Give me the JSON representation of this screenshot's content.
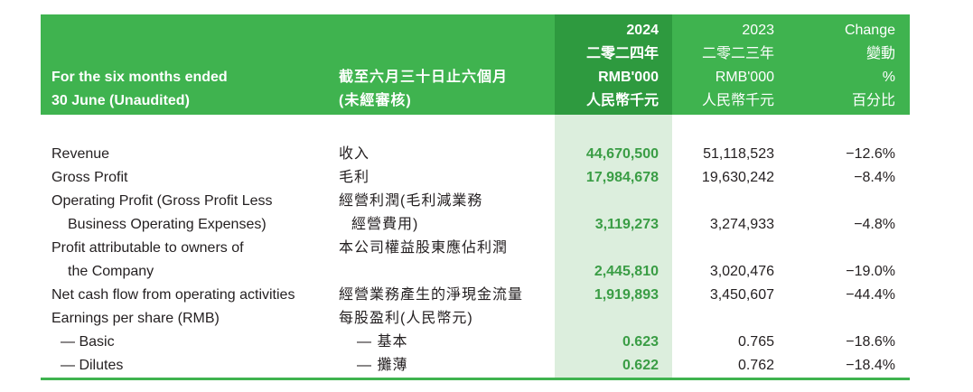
{
  "header": {
    "period_en_1": "For the six months ended",
    "period_en_2": "30 June (Unaudited)",
    "period_zh_1": "截至六月三十日止六個月",
    "period_zh_2": "(未經審核)",
    "col_2024": [
      "2024",
      "二零二四年",
      "RMB'000",
      "人民幣千元"
    ],
    "col_2023": [
      "2023",
      "二零二三年",
      "RMB'000",
      "人民幣千元"
    ],
    "col_change": [
      "Change",
      "變動",
      "%",
      "百分比"
    ]
  },
  "rows": [
    {
      "en": "Revenue",
      "zh": "收入",
      "v2024": "44,670,500",
      "v2023": "51,118,523",
      "change": "−12.6%"
    },
    {
      "en": "Gross Profit",
      "zh": "毛利",
      "v2024": "17,984,678",
      "v2023": "19,630,242",
      "change": "−8.4%"
    },
    {
      "en": "Operating Profit (Gross Profit Less",
      "zh": "經營利潤(毛利減業務",
      "v2024": "",
      "v2023": "",
      "change": ""
    },
    {
      "en": "Business Operating Expenses)",
      "zh": "經營費用)",
      "v2024": "3,119,273",
      "v2023": "3,274,933",
      "change": "−4.8%"
    },
    {
      "en": "Profit attributable to owners of",
      "zh": "本公司權益股東應佔利潤",
      "v2024": "",
      "v2023": "",
      "change": ""
    },
    {
      "en": "the Company",
      "zh": "",
      "v2024": "2,445,810",
      "v2023": "3,020,476",
      "change": "−19.0%"
    },
    {
      "en": "Net cash flow from operating activities",
      "zh": "經營業務產生的淨現金流量",
      "v2024": "1,919,893",
      "v2023": "3,450,607",
      "change": "−44.4%"
    },
    {
      "en": "Earnings per share (RMB)",
      "zh": "每股盈利(人民幣元)",
      "v2024": "",
      "v2023": "",
      "change": ""
    },
    {
      "en": "— Basic",
      "zh": "— 基本",
      "v2024": "0.623",
      "v2023": "0.765",
      "change": "−18.6%"
    },
    {
      "en": "— Dilutes",
      "zh": "— 攤薄",
      "v2024": "0.622",
      "v2023": "0.762",
      "change": "−18.4%"
    }
  ],
  "colors": {
    "header_green": "#3fb34f",
    "highlight": "#dceedd",
    "value_green": "#3a9d45"
  }
}
